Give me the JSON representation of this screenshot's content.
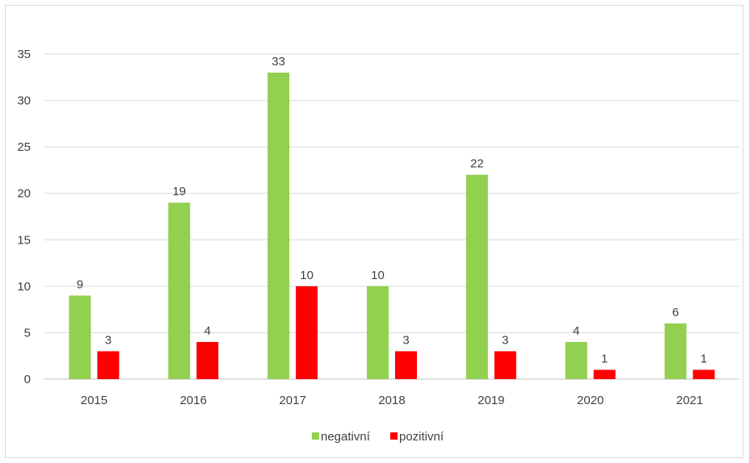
{
  "chart_data": {
    "type": "bar",
    "title": "",
    "xlabel": "",
    "ylabel": "",
    "categories": [
      "2015",
      "2016",
      "2017",
      "2018",
      "2019",
      "2020",
      "2021"
    ],
    "series": [
      {
        "name": "negativní",
        "color": "#92d050",
        "values": [
          9,
          19,
          33,
          10,
          22,
          4,
          6
        ]
      },
      {
        "name": "pozitivní",
        "color": "#ff0000",
        "values": [
          3,
          4,
          10,
          3,
          3,
          1,
          1
        ]
      }
    ],
    "ylim": [
      0,
      35
    ],
    "yticks": [
      0,
      5,
      10,
      15,
      20,
      25,
      30,
      35
    ],
    "grid": true,
    "legend": "bottom",
    "data_labels": true
  }
}
